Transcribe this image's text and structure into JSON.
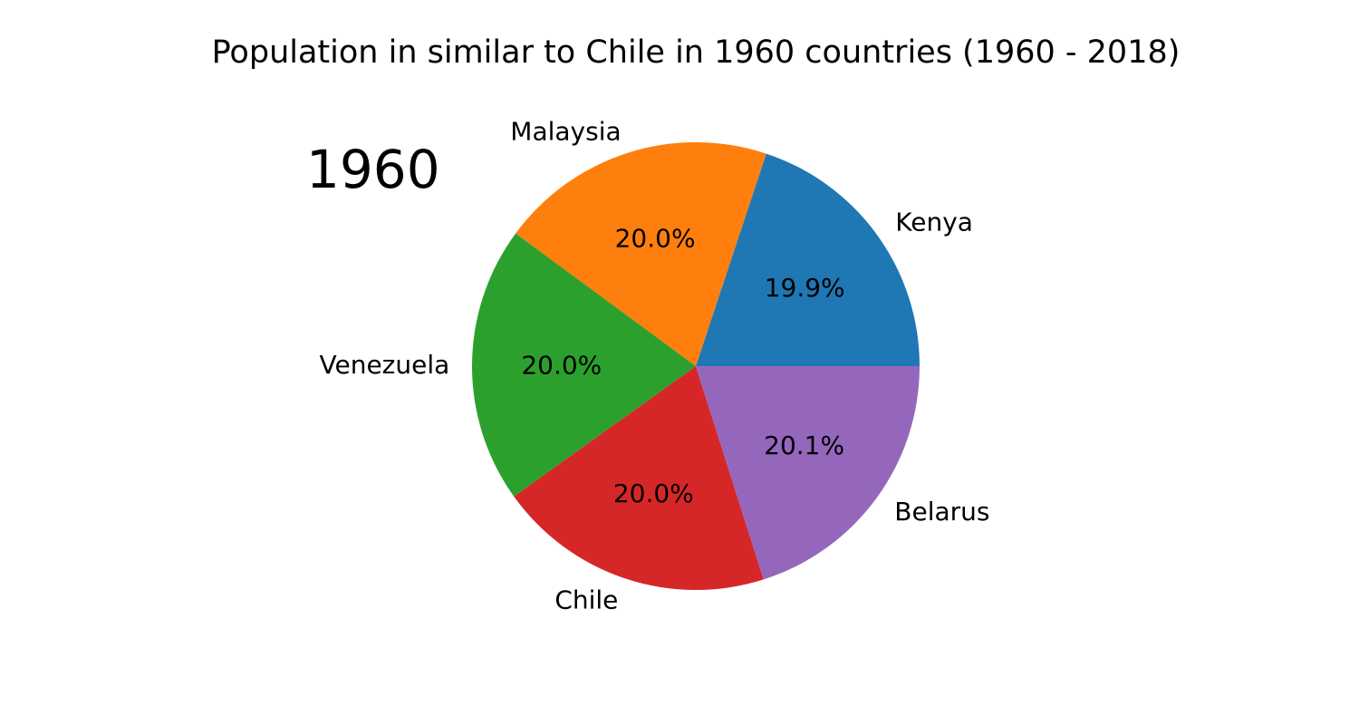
{
  "chart_data": {
    "type": "pie",
    "title": "Population in similar to Chile in 1960 countries (1960 - 2018)",
    "annotation": "1960",
    "slices": [
      {
        "label": "Kenya",
        "value": 19.9,
        "pct_label": "19.9%",
        "color": "#1f77b4"
      },
      {
        "label": "Malaysia",
        "value": 20.0,
        "pct_label": "20.0%",
        "color": "#ff7f0e"
      },
      {
        "label": "Venezuela",
        "value": 20.0,
        "pct_label": "20.0%",
        "color": "#2ca02c"
      },
      {
        "label": "Chile",
        "value": 20.0,
        "pct_label": "20.0%",
        "color": "#d62728"
      },
      {
        "label": "Belarus",
        "value": 20.1,
        "pct_label": "20.1%",
        "color": "#9467bd"
      }
    ],
    "start_angle_deg": 0,
    "direction": "counterclockwise",
    "legend": "none"
  }
}
